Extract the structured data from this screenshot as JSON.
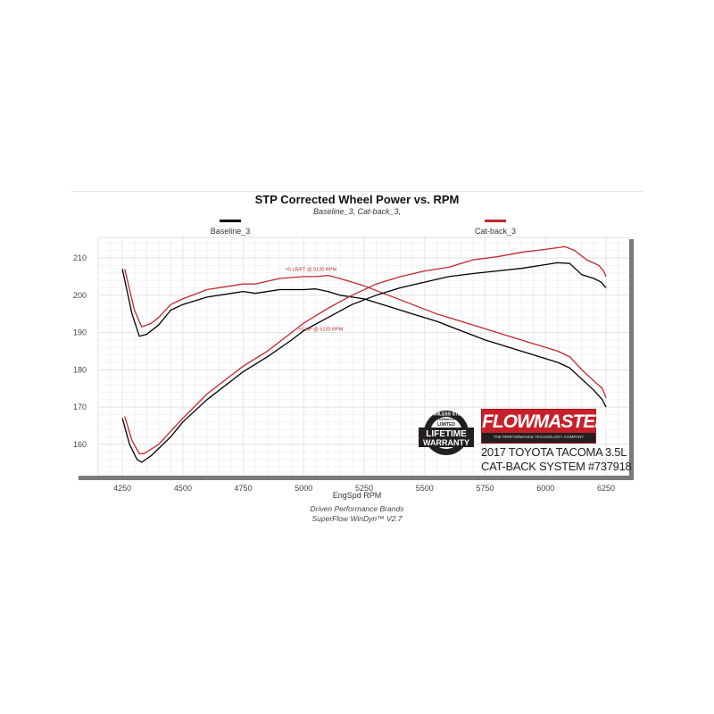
{
  "chart_data": {
    "type": "line",
    "title": "STP Corrected Wheel Power vs. RPM",
    "subtitle": "Baseline_3, Cat-back_3,",
    "xlabel": "EngSpd  RPM",
    "ylabel": "",
    "xlim": [
      4150,
      6346
    ],
    "ylim": [
      151.6,
      215.5
    ],
    "xticks": [
      4250,
      4500,
      4750,
      5000,
      5250,
      5500,
      5750,
      6000,
      6250
    ],
    "yticks": [
      160,
      170,
      180,
      190,
      200,
      210
    ],
    "grid": true,
    "legend_placement": "top",
    "legend": [
      {
        "name": "Baseline_3",
        "color": "#000000"
      },
      {
        "name": "Cat-back_3",
        "color": "#c0272d"
      }
    ],
    "series": [
      {
        "name": "Baseline_3",
        "color": "#000000",
        "points": [
          [
            4250,
            207
          ],
          [
            4290,
            195
          ],
          [
            4320,
            189
          ],
          [
            4350,
            189.5
          ],
          [
            4400,
            192
          ],
          [
            4450,
            196
          ],
          [
            4500,
            197.5
          ],
          [
            4600,
            199.5
          ],
          [
            4700,
            200.5
          ],
          [
            4750,
            201
          ],
          [
            4800,
            200.5
          ],
          [
            4900,
            201.5
          ],
          [
            5000,
            201.5
          ],
          [
            5050,
            201.7
          ],
          [
            5100,
            201
          ],
          [
            5150,
            200
          ],
          [
            5250,
            199
          ],
          [
            5350,
            197
          ],
          [
            5450,
            195
          ],
          [
            5550,
            193
          ],
          [
            5650,
            190.5
          ],
          [
            5750,
            188
          ],
          [
            5850,
            186
          ],
          [
            5950,
            184
          ],
          [
            6050,
            182
          ],
          [
            6100,
            180.5
          ],
          [
            6150,
            177.5
          ],
          [
            6200,
            174.5
          ],
          [
            6235,
            172
          ],
          [
            6250,
            170
          ]
        ]
      },
      {
        "name": "Cat-back_3",
        "color": "#c0272d",
        "points": [
          [
            4260,
            207
          ],
          [
            4300,
            196
          ],
          [
            4330,
            191.5
          ],
          [
            4370,
            192.5
          ],
          [
            4400,
            194
          ],
          [
            4450,
            197.5
          ],
          [
            4500,
            199
          ],
          [
            4600,
            201.5
          ],
          [
            4700,
            202.5
          ],
          [
            4750,
            203
          ],
          [
            4800,
            203
          ],
          [
            4900,
            204.5
          ],
          [
            5000,
            205
          ],
          [
            5050,
            205
          ],
          [
            5100,
            205.3
          ],
          [
            5150,
            204.5
          ],
          [
            5250,
            202.5
          ],
          [
            5350,
            200
          ],
          [
            5450,
            197.5
          ],
          [
            5550,
            195
          ],
          [
            5650,
            193
          ],
          [
            5750,
            191
          ],
          [
            5850,
            189
          ],
          [
            5950,
            187
          ],
          [
            6050,
            185
          ],
          [
            6100,
            183.5
          ],
          [
            6150,
            180
          ],
          [
            6200,
            177
          ],
          [
            6235,
            175
          ],
          [
            6250,
            172.5
          ]
        ]
      },
      {
        "name": "Baseline_3",
        "color": "#000000",
        "points": [
          [
            4250,
            167
          ],
          [
            4280,
            160
          ],
          [
            4310,
            156
          ],
          [
            4330,
            155.2
          ],
          [
            4370,
            157
          ],
          [
            4450,
            162
          ],
          [
            4500,
            166
          ],
          [
            4600,
            172
          ],
          [
            4700,
            177
          ],
          [
            4750,
            179.5
          ],
          [
            4850,
            183.5
          ],
          [
            4950,
            188
          ],
          [
            5000,
            190.5
          ],
          [
            5100,
            194
          ],
          [
            5200,
            197.5
          ],
          [
            5300,
            200
          ],
          [
            5400,
            202
          ],
          [
            5500,
            203.5
          ],
          [
            5600,
            205
          ],
          [
            5700,
            205.8
          ],
          [
            5800,
            206.5
          ],
          [
            5900,
            207.2
          ],
          [
            6000,
            208.2
          ],
          [
            6050,
            208.7
          ],
          [
            6100,
            208.5
          ],
          [
            6150,
            205.5
          ],
          [
            6200,
            204.5
          ],
          [
            6230,
            203.5
          ],
          [
            6250,
            202
          ]
        ]
      },
      {
        "name": "Cat-back_3",
        "color": "#c0272d",
        "points": [
          [
            4260,
            167.5
          ],
          [
            4290,
            161
          ],
          [
            4320,
            157.5
          ],
          [
            4340,
            157.5
          ],
          [
            4400,
            160
          ],
          [
            4500,
            167
          ],
          [
            4600,
            173.5
          ],
          [
            4700,
            178.5
          ],
          [
            4750,
            181
          ],
          [
            4850,
            185
          ],
          [
            4950,
            190
          ],
          [
            5000,
            192.5
          ],
          [
            5100,
            196.5
          ],
          [
            5200,
            200
          ],
          [
            5300,
            203
          ],
          [
            5400,
            205
          ],
          [
            5500,
            206.5
          ],
          [
            5600,
            207.5
          ],
          [
            5700,
            209.5
          ],
          [
            5800,
            210.3
          ],
          [
            5900,
            211.5
          ],
          [
            6000,
            212.3
          ],
          [
            6080,
            213
          ],
          [
            6120,
            212
          ],
          [
            6170,
            209.5
          ],
          [
            6220,
            208
          ],
          [
            6240,
            206.5
          ],
          [
            6250,
            205
          ]
        ]
      }
    ],
    "annotations": [
      {
        "text": "+5 LB/FT @ 5120 RPM",
        "x": 5030,
        "y": 206.5
      },
      {
        "text": "+5 HP @ 5120 RPM",
        "x": 5070,
        "y": 190.5
      }
    ]
  },
  "credits": [
    "Driven Performance Brands",
    "SuperFlow WinDyn™  V2.7"
  ],
  "branding": {
    "logo": "FLOWMASTER",
    "tagline": "THE PERFORMANCE TECHNOLOGY COMPANY",
    "vehicle": "2017 TOYOTA TACOMA 3.5L",
    "system": "CAT-BACK SYSTEM #737918",
    "badge": [
      "STAINLESS STEEL",
      "FLOWMASTER",
      "LIMITED",
      "LIFETIME",
      "WARRANTY"
    ]
  }
}
